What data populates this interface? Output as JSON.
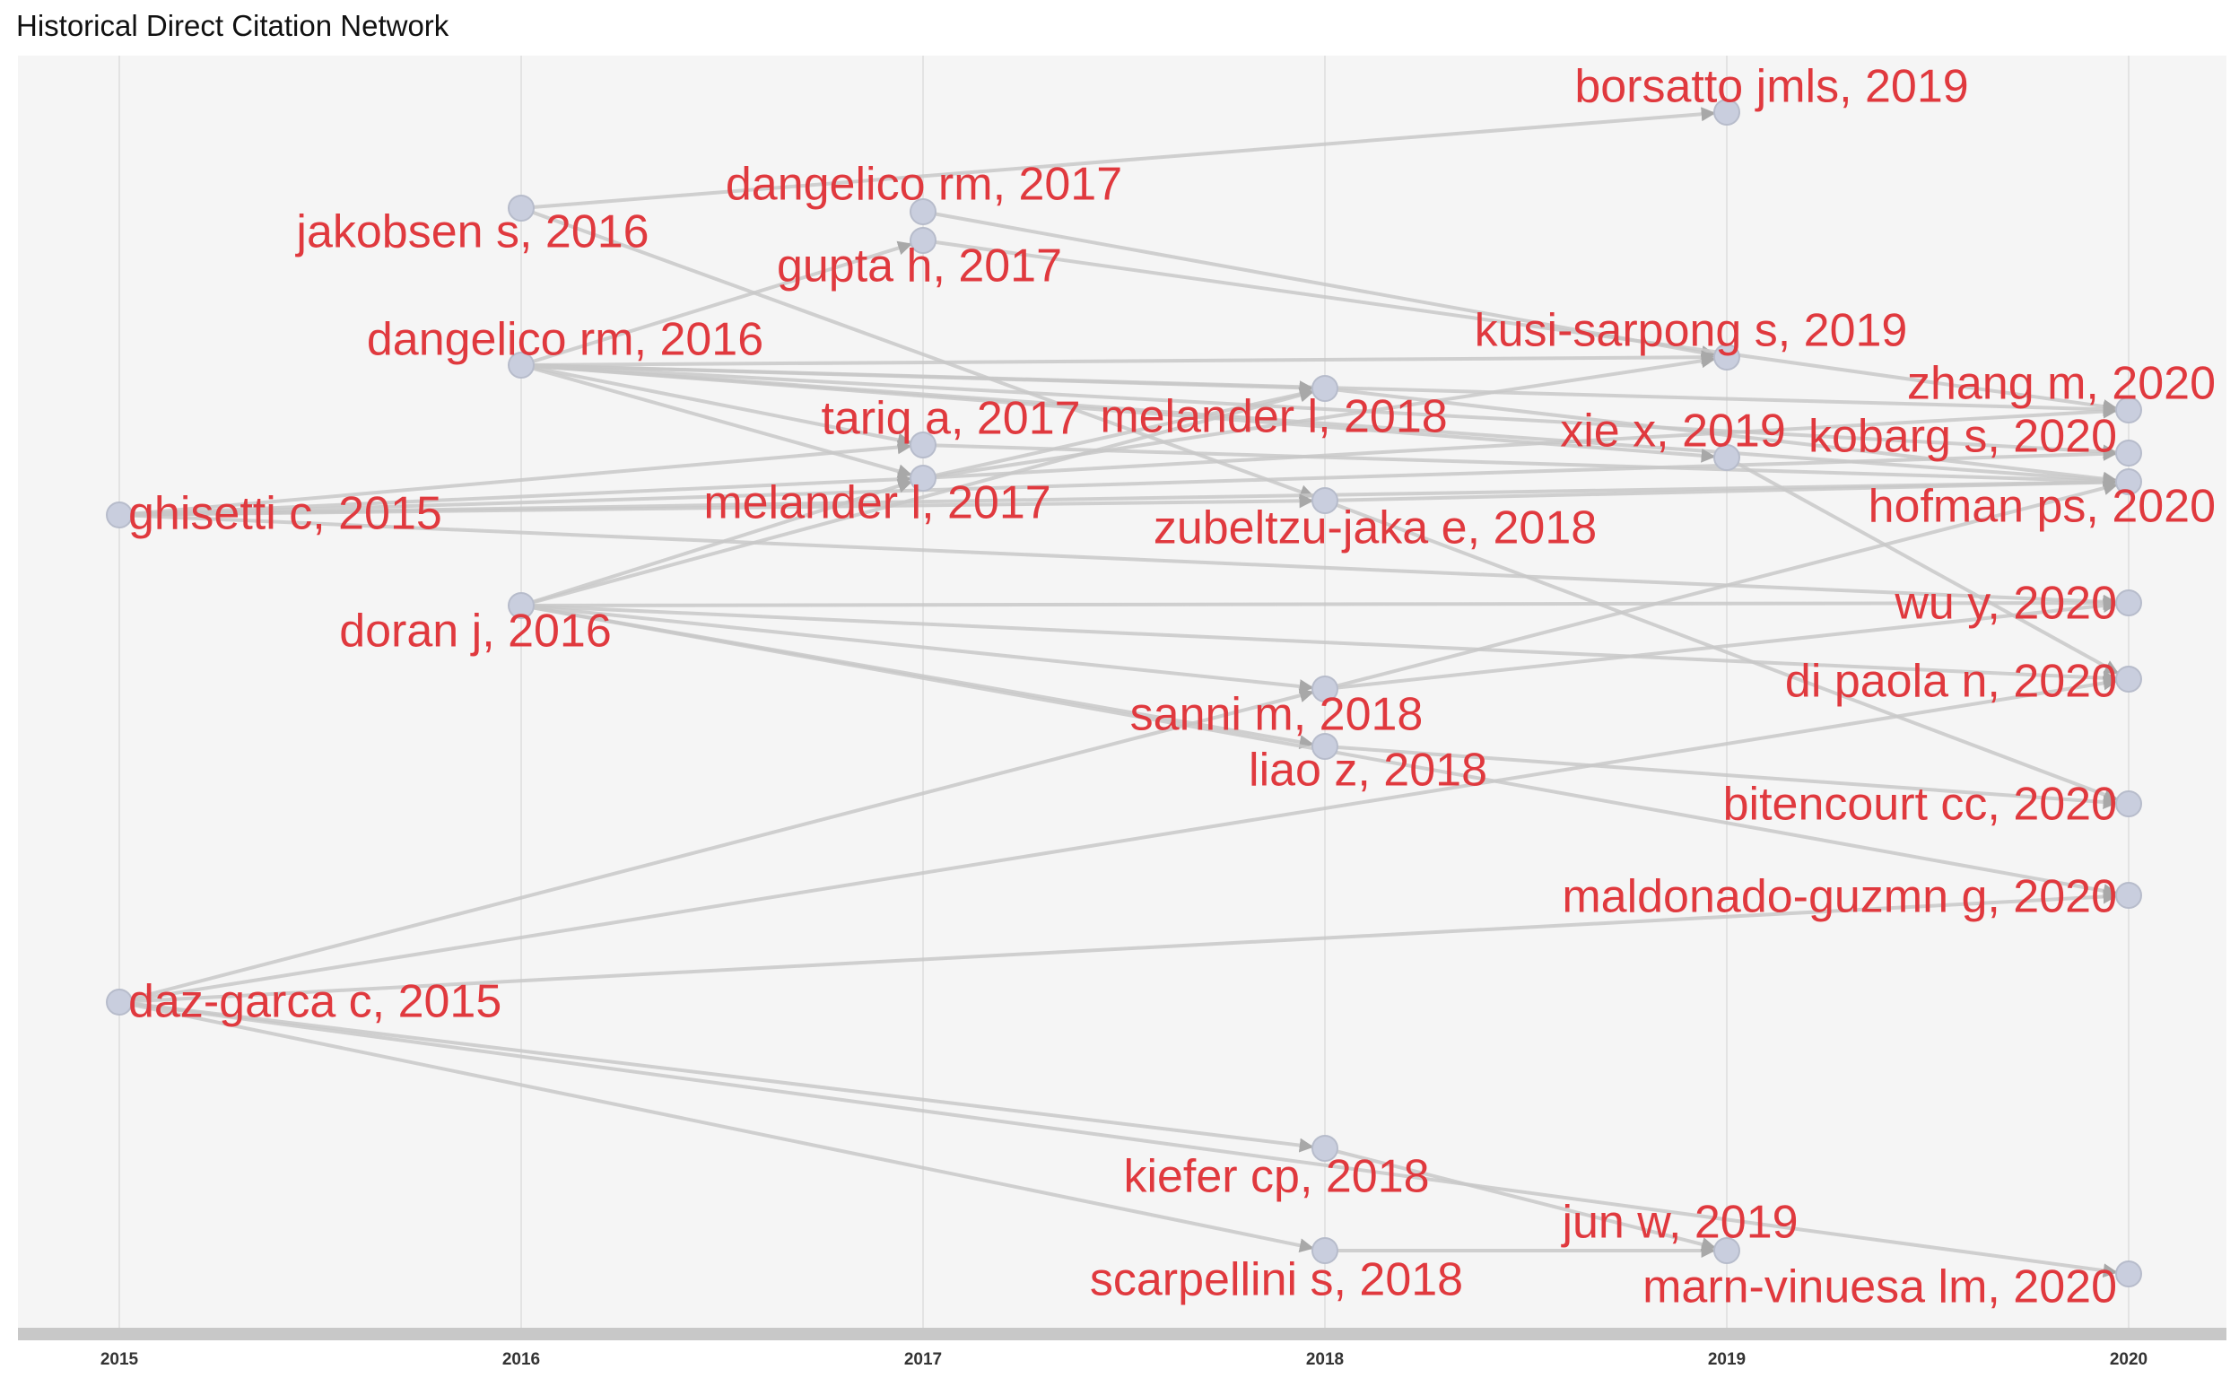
{
  "title": "Historical Direct Citation Network",
  "colors": {
    "panel": "#f5f5f5",
    "gridline": "#e3e3e3",
    "axis_strip": "#c8c8c8",
    "edge": "#c8c8c8",
    "node_fill": "#c9cede",
    "node_stroke": "#b7bccb",
    "label": "#e0393e"
  },
  "years": [
    "2015",
    "2016",
    "2017",
    "2018",
    "2019",
    "2020"
  ],
  "nodes": [
    {
      "id": "borsatto",
      "label": "borsatto jmls, 2019",
      "year": 2019
    },
    {
      "id": "jakobsen",
      "label": "jakobsen s, 2016",
      "year": 2016
    },
    {
      "id": "dangelico17",
      "label": "dangelico rm, 2017",
      "year": 2017
    },
    {
      "id": "gupta",
      "label": "gupta h, 2017",
      "year": 2017
    },
    {
      "id": "dangelico16",
      "label": "dangelico rm, 2016",
      "year": 2016
    },
    {
      "id": "kusi",
      "label": "kusi-sarpong s, 2019",
      "year": 2019
    },
    {
      "id": "zhang",
      "label": "zhang m, 2020",
      "year": 2020
    },
    {
      "id": "melander18",
      "label": "melander l, 2018",
      "year": 2018
    },
    {
      "id": "tariq",
      "label": "tariq a, 2017",
      "year": 2017
    },
    {
      "id": "xie",
      "label": "xie x, 2019",
      "year": 2019
    },
    {
      "id": "kobarg",
      "label": "kobarg s, 2020",
      "year": 2020
    },
    {
      "id": "ghisetti",
      "label": "ghisetti c, 2015",
      "year": 2015
    },
    {
      "id": "melander17",
      "label": "melander l, 2017",
      "year": 2017
    },
    {
      "id": "hofman",
      "label": "hofman ps, 2020",
      "year": 2020
    },
    {
      "id": "zubeltzu",
      "label": "zubeltzu-jaka e, 2018",
      "year": 2018
    },
    {
      "id": "wu",
      "label": "wu y, 2020",
      "year": 2020
    },
    {
      "id": "doran",
      "label": "doran j, 2016",
      "year": 2016
    },
    {
      "id": "dipaola",
      "label": "di paola n, 2020",
      "year": 2020
    },
    {
      "id": "sanni",
      "label": "sanni m, 2018",
      "year": 2018
    },
    {
      "id": "liao",
      "label": "liao z, 2018",
      "year": 2018
    },
    {
      "id": "bitencourt",
      "label": "bitencourt cc, 2020",
      "year": 2020
    },
    {
      "id": "maldonado",
      "label": "maldonado-guzmn g, 2020",
      "year": 2020
    },
    {
      "id": "diaz",
      "label": "daz-garca c, 2015",
      "year": 2015
    },
    {
      "id": "kiefer",
      "label": "kiefer cp, 2018",
      "year": 2018
    },
    {
      "id": "jun",
      "label": "jun w, 2019",
      "year": 2019
    },
    {
      "id": "scarpellini",
      "label": "scarpellini s, 2018",
      "year": 2018
    },
    {
      "id": "marn",
      "label": "marn-vinuesa lm, 2020",
      "year": 2020
    }
  ],
  "edges": [
    [
      "jakobsen",
      "borsatto"
    ],
    [
      "dangelico16",
      "gupta"
    ],
    [
      "jakobsen",
      "zubeltzu"
    ],
    [
      "dangelico17",
      "kusi"
    ],
    [
      "gupta",
      "zhang"
    ],
    [
      "dangelico16",
      "kusi"
    ],
    [
      "dangelico16",
      "zhang"
    ],
    [
      "dangelico16",
      "melander18"
    ],
    [
      "dangelico16",
      "tariq"
    ],
    [
      "dangelico16",
      "melander17"
    ],
    [
      "dangelico16",
      "kobarg"
    ],
    [
      "dangelico16",
      "hofman"
    ],
    [
      "dangelico16",
      "xie"
    ],
    [
      "ghisetti",
      "tariq"
    ],
    [
      "ghisetti",
      "melander17"
    ],
    [
      "ghisetti",
      "hofman"
    ],
    [
      "ghisetti",
      "kobarg"
    ],
    [
      "ghisetti",
      "wu"
    ],
    [
      "ghisetti",
      "zubeltzu"
    ],
    [
      "melander17",
      "melander18"
    ],
    [
      "melander17",
      "kusi"
    ],
    [
      "melander17",
      "zhang"
    ],
    [
      "tariq",
      "hofman"
    ],
    [
      "melander18",
      "hofman"
    ],
    [
      "zubeltzu",
      "hofman"
    ],
    [
      "zubeltzu",
      "bitencourt"
    ],
    [
      "xie",
      "dipaola"
    ],
    [
      "doran",
      "melander17"
    ],
    [
      "doran",
      "melander18"
    ],
    [
      "doran",
      "sanni"
    ],
    [
      "doran",
      "liao"
    ],
    [
      "doran",
      "wu"
    ],
    [
      "doran",
      "dipaola"
    ],
    [
      "doran",
      "maldonado"
    ],
    [
      "sanni",
      "hofman"
    ],
    [
      "sanni",
      "wu"
    ],
    [
      "liao",
      "bitencourt"
    ],
    [
      "diaz",
      "sanni"
    ],
    [
      "diaz",
      "dipaola"
    ],
    [
      "diaz",
      "maldonado"
    ],
    [
      "diaz",
      "kiefer"
    ],
    [
      "diaz",
      "scarpellini"
    ],
    [
      "diaz",
      "marn"
    ],
    [
      "scarpellini",
      "jun"
    ],
    [
      "kiefer",
      "jun"
    ]
  ]
}
